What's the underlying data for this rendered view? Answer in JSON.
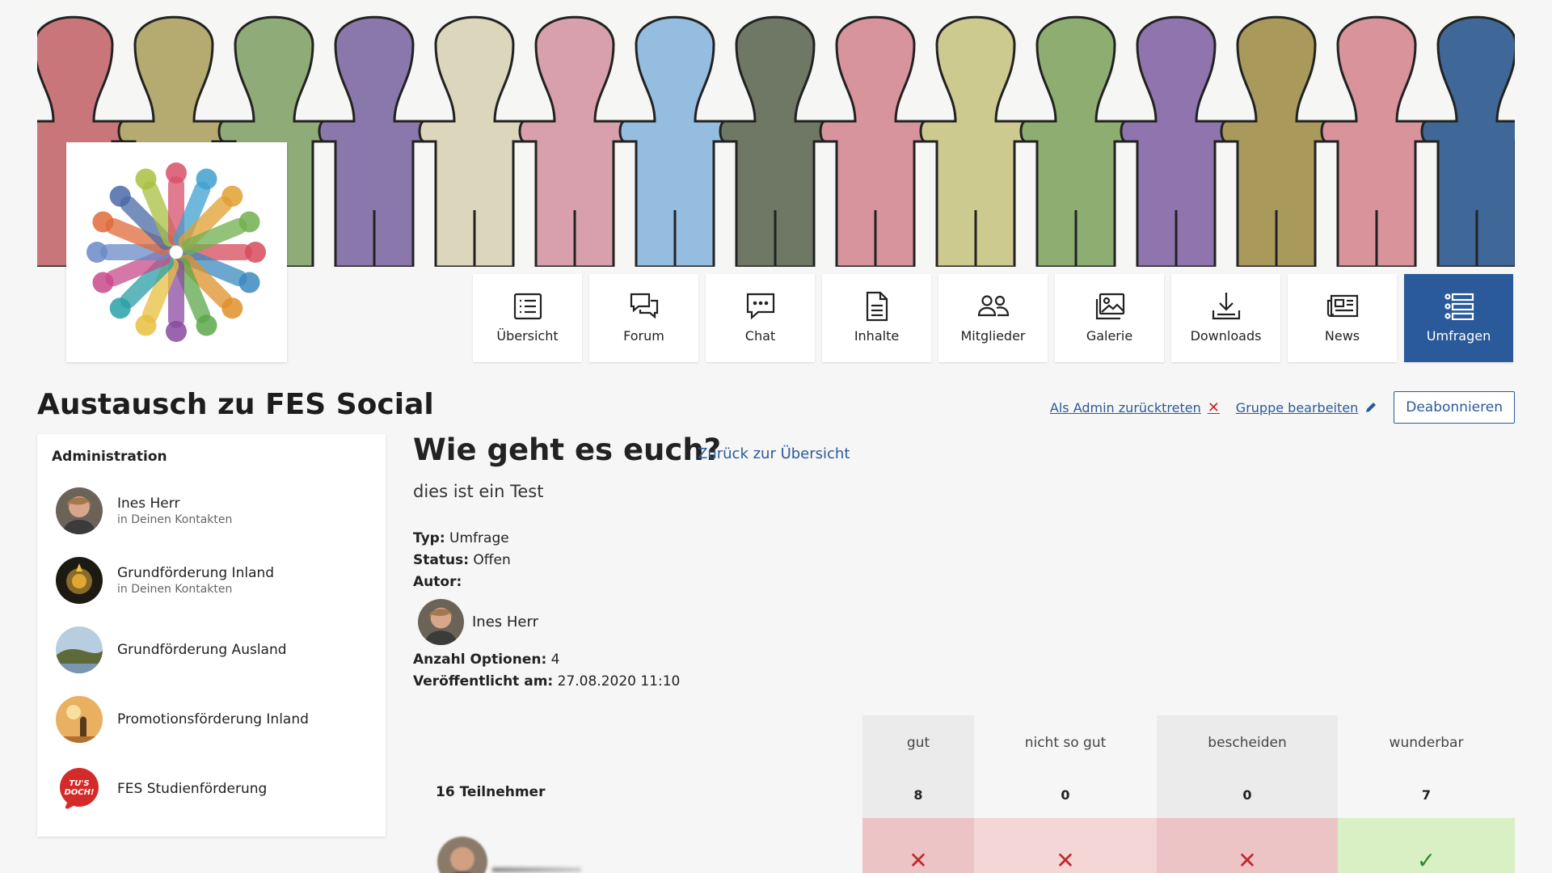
{
  "nav": {
    "tabs": [
      {
        "label": "Übersicht",
        "icon": "list-icon",
        "active": false
      },
      {
        "label": "Forum",
        "icon": "chat-bubbles-icon",
        "active": false
      },
      {
        "label": "Chat",
        "icon": "speech-bubble-icon",
        "active": false
      },
      {
        "label": "Inhalte",
        "icon": "document-icon",
        "active": false
      },
      {
        "label": "Mitglieder",
        "icon": "members-icon",
        "active": false
      },
      {
        "label": "Galerie",
        "icon": "gallery-icon",
        "active": false
      },
      {
        "label": "Downloads",
        "icon": "download-icon",
        "active": false
      },
      {
        "label": "News",
        "icon": "newspaper-icon",
        "active": false
      },
      {
        "label": "Umfragen",
        "icon": "poll-icon",
        "active": true
      }
    ]
  },
  "group": {
    "title": "Austausch zu FES Social"
  },
  "actions": {
    "leave_admin": "Als Admin zurücktreten",
    "edit_group": "Gruppe bearbeiten",
    "unsubscribe": "Deabonnieren"
  },
  "sidebar": {
    "heading": "Administration",
    "members": [
      {
        "name": "Ines Herr",
        "sub": "in Deinen Kontakten"
      },
      {
        "name": "Grundförderung Inland",
        "sub": "in Deinen Kontakten"
      },
      {
        "name": "Grundförderung Ausland",
        "sub": ""
      },
      {
        "name": "Promotionsförderung Inland",
        "sub": ""
      },
      {
        "name": "FES Studienförderung",
        "sub": ""
      }
    ]
  },
  "poll": {
    "title": "Wie geht es euch?",
    "back_link": "Zurück zur Übersicht",
    "description": "dies ist ein Test",
    "type_label": "Typ:",
    "type_value": "Umfrage",
    "status_label": "Status:",
    "status_value": "Offen",
    "author_label": "Autor:",
    "author_name": "Ines Herr",
    "options_label": "Anzahl Optionen:",
    "options_value": "4",
    "published_label": "Veröffentlicht am:",
    "published_value": "27.08.2020 11:10",
    "participants": "16 Teilnehmer",
    "options": [
      {
        "label": "gut",
        "count": "8",
        "vote": "no"
      },
      {
        "label": "nicht so gut",
        "count": "0",
        "vote": "no"
      },
      {
        "label": "bescheiden",
        "count": "0",
        "vote": "no"
      },
      {
        "label": "wunderbar",
        "count": "7",
        "vote": "yes"
      }
    ]
  },
  "colors": {
    "accent": "#2a5a9a",
    "no_mark": "#c0292d",
    "yes_mark": "#2d8a2d"
  }
}
